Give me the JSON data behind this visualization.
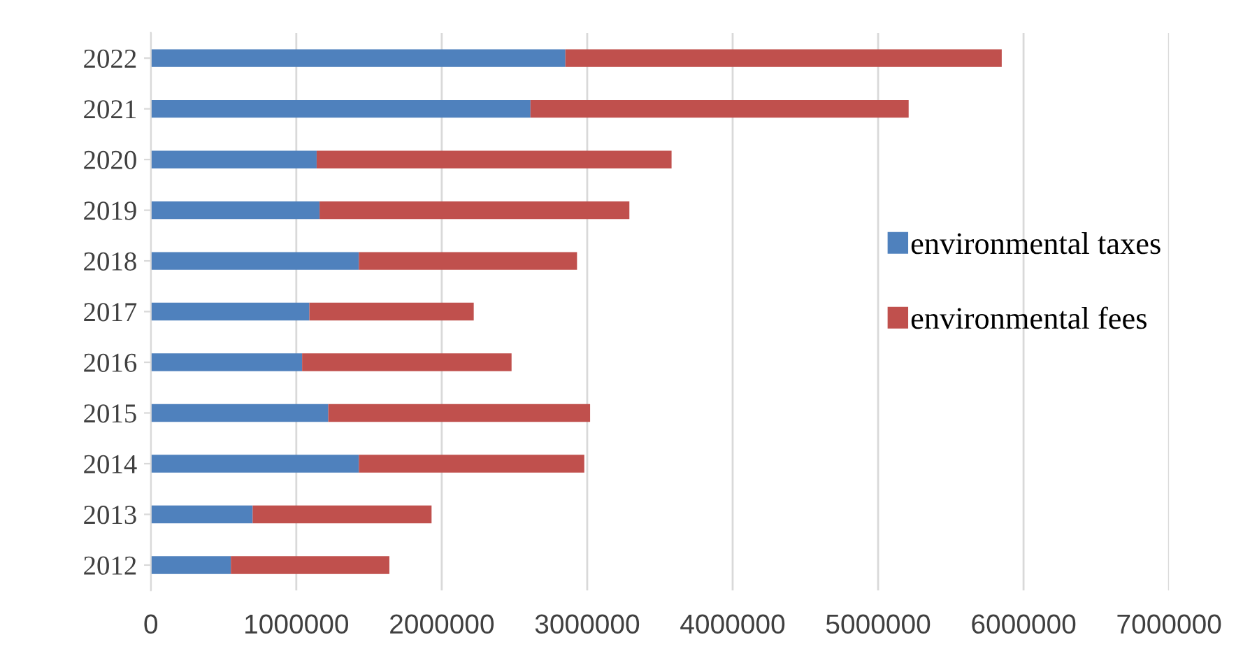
{
  "chart_data": {
    "type": "bar",
    "orientation": "horizontal",
    "stacked": true,
    "categories": [
      "2022",
      "2021",
      "2020",
      "2019",
      "2018",
      "2017",
      "2016",
      "2015",
      "2014",
      "2013",
      "2012"
    ],
    "series": [
      {
        "name": "environmental taxes",
        "color": "#4f81bd",
        "values": [
          2850000,
          2610000,
          1140000,
          1160000,
          1430000,
          1090000,
          1040000,
          1220000,
          1430000,
          700000,
          550000
        ]
      },
      {
        "name": "environmental fees",
        "color": "#c0504d",
        "values": [
          3000000,
          2600000,
          2440000,
          2130000,
          1500000,
          1130000,
          1440000,
          1800000,
          1550000,
          1230000,
          1090000
        ]
      }
    ],
    "xlim": [
      0,
      7000000
    ],
    "xticks": [
      0,
      1000000,
      2000000,
      3000000,
      4000000,
      5000000,
      6000000,
      7000000
    ],
    "grid": "x",
    "legend": "right"
  }
}
